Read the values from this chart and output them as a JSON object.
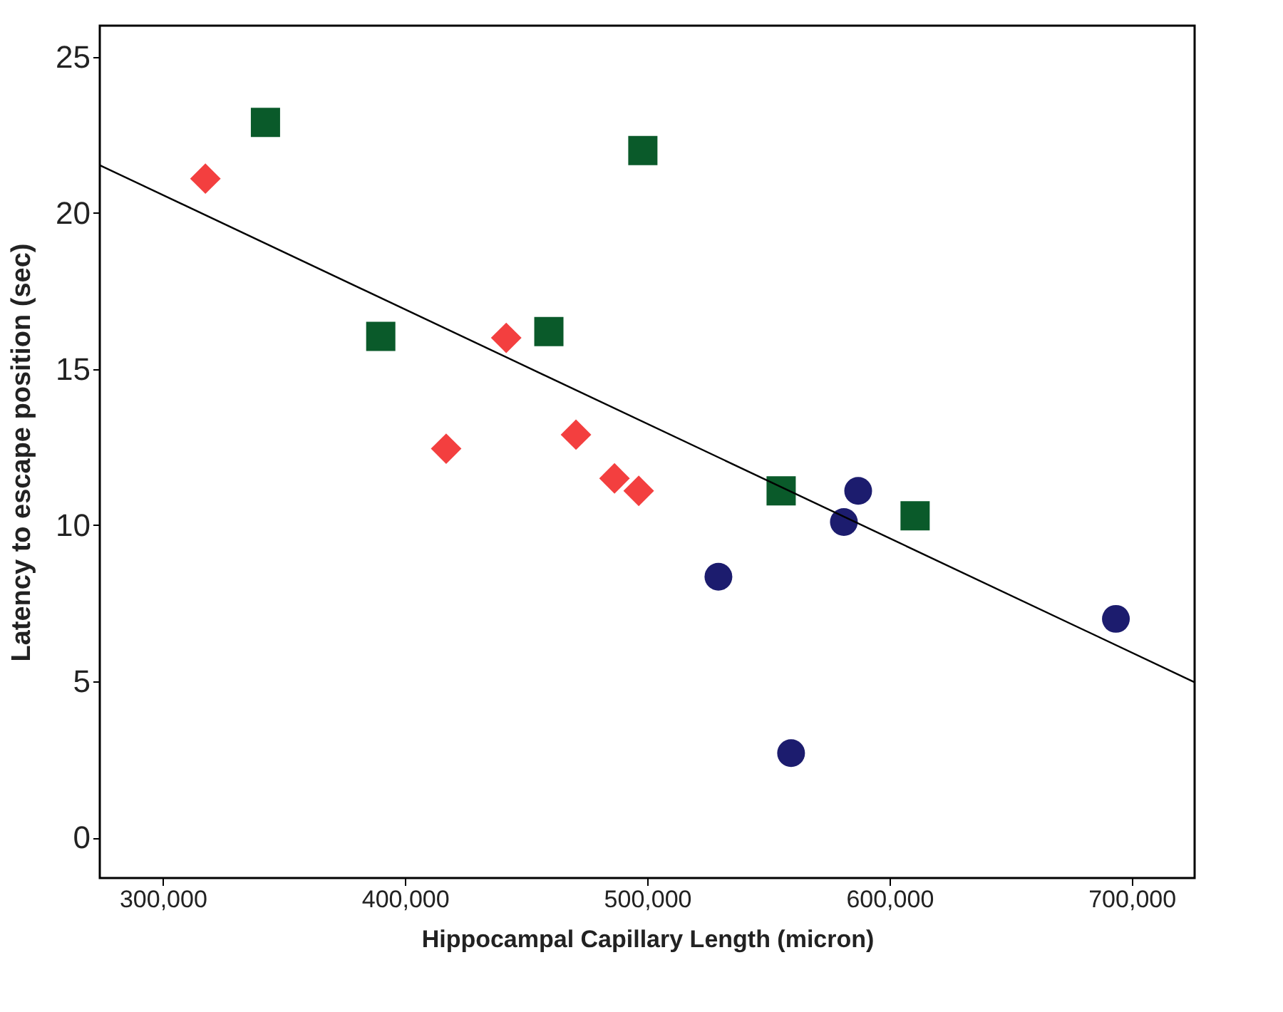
{
  "chart_data": {
    "type": "scatter",
    "xlabel": "Hippocampal Capillary Length (micron)",
    "ylabel": "Latency to escape position (sec)",
    "xlim": [
      274000,
      726000
    ],
    "ylim": [
      -1.3,
      26
    ],
    "xticks": [
      {
        "value": 300000,
        "label": "300,000"
      },
      {
        "value": 400000,
        "label": "400,000"
      },
      {
        "value": 500000,
        "label": "500,000"
      },
      {
        "value": 600000,
        "label": "600,000"
      },
      {
        "value": 700000,
        "label": "700,000"
      }
    ],
    "yticks": [
      0,
      5,
      10,
      15,
      20,
      25
    ],
    "grid": false,
    "series": [
      {
        "marker": "diamond",
        "color": "#f33f3f",
        "x": [
          317600,
          441800,
          417000,
          470600,
          486500,
          496500
        ],
        "values": [
          21.1,
          16.0,
          12.45,
          12.9,
          11.5,
          11.1
        ]
      },
      {
        "marker": "square",
        "color": "#0a5a2a",
        "x": [
          342400,
          390000,
          459400,
          498200,
          555300,
          610600
        ],
        "values": [
          22.9,
          16.05,
          16.2,
          22.0,
          11.1,
          10.3
        ]
      },
      {
        "marker": "circle",
        "color": "#1c1c6e",
        "x": [
          529400,
          559400,
          581200,
          587100,
          693500
        ],
        "values": [
          8.35,
          2.7,
          10.1,
          11.1,
          7.0
        ]
      },
      {
        "type": "line",
        "color": "#000000",
        "line_style": "solid",
        "x": [
          274000,
          726000
        ],
        "values": [
          21.53,
          4.97
        ]
      }
    ]
  }
}
